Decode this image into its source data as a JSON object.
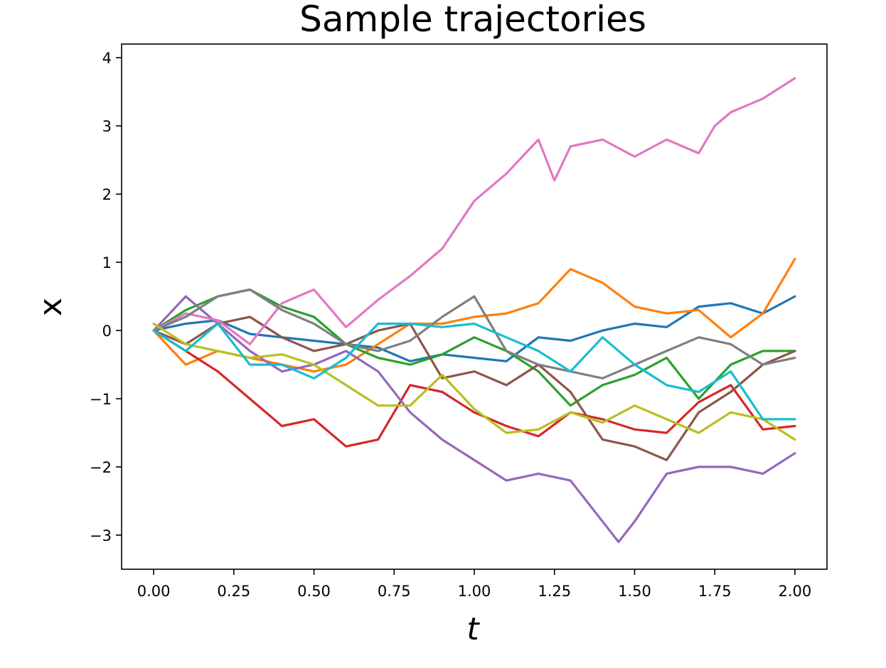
{
  "chart_data": {
    "type": "line",
    "title": "Sample trajectories",
    "xlabel": "t",
    "ylabel": "x",
    "xlim": [
      -0.1,
      2.1
    ],
    "ylim": [
      -3.5,
      4.2
    ],
    "xticks": [
      0.0,
      0.25,
      0.5,
      0.75,
      1.0,
      1.25,
      1.5,
      1.75,
      2.0
    ],
    "xtick_labels": [
      "0.00",
      "0.25",
      "0.50",
      "0.75",
      "1.00",
      "1.25",
      "1.50",
      "1.75",
      "2.00"
    ],
    "yticks": [
      -3,
      -2,
      -1,
      0,
      1,
      2,
      3,
      4
    ],
    "ytick_labels": [
      "−3",
      "−2",
      "−1",
      "0",
      "1",
      "2",
      "3",
      "4"
    ],
    "grid": false,
    "legend": "none",
    "series": [
      {
        "color": "#1f77b4",
        "x": [
          0,
          0.1,
          0.2,
          0.3,
          0.4,
          0.5,
          0.6,
          0.7,
          0.8,
          0.9,
          1.0,
          1.1,
          1.2,
          1.3,
          1.4,
          1.5,
          1.6,
          1.7,
          1.8,
          1.9,
          2.0
        ],
        "y": [
          0,
          0.1,
          0.15,
          -0.05,
          -0.1,
          -0.15,
          -0.2,
          -0.25,
          -0.45,
          -0.35,
          -0.4,
          -0.45,
          -0.1,
          -0.15,
          0.0,
          0.1,
          0.05,
          0.35,
          0.4,
          0.25,
          0.5
        ]
      },
      {
        "color": "#ff7f0e",
        "x": [
          0,
          0.1,
          0.2,
          0.3,
          0.4,
          0.5,
          0.6,
          0.7,
          0.8,
          0.9,
          1.0,
          1.1,
          1.2,
          1.3,
          1.4,
          1.5,
          1.6,
          1.7,
          1.8,
          1.9,
          2.0
        ],
        "y": [
          0,
          -0.5,
          -0.3,
          -0.4,
          -0.5,
          -0.6,
          -0.5,
          -0.2,
          0.1,
          0.1,
          0.2,
          0.25,
          0.4,
          0.9,
          0.7,
          0.35,
          0.25,
          0.3,
          -0.1,
          0.25,
          1.05
        ]
      },
      {
        "color": "#2ca02c",
        "x": [
          0,
          0.1,
          0.2,
          0.3,
          0.4,
          0.5,
          0.6,
          0.7,
          0.8,
          0.9,
          1.0,
          1.1,
          1.2,
          1.3,
          1.4,
          1.5,
          1.6,
          1.7,
          1.8,
          1.9,
          2.0
        ],
        "y": [
          0,
          0.3,
          0.5,
          0.6,
          0.35,
          0.2,
          -0.2,
          -0.4,
          -0.5,
          -0.35,
          -0.1,
          -0.3,
          -0.6,
          -1.1,
          -0.8,
          -0.65,
          -0.4,
          -1.0,
          -0.5,
          -0.3,
          -0.3
        ]
      },
      {
        "color": "#d62728",
        "x": [
          0,
          0.1,
          0.2,
          0.3,
          0.4,
          0.5,
          0.6,
          0.7,
          0.8,
          0.9,
          1.0,
          1.1,
          1.2,
          1.3,
          1.4,
          1.5,
          1.6,
          1.7,
          1.8,
          1.9,
          2.0
        ],
        "y": [
          0,
          -0.3,
          -0.6,
          -1.0,
          -1.4,
          -1.3,
          -1.7,
          -1.6,
          -0.8,
          -0.9,
          -1.2,
          -1.4,
          -1.55,
          -1.2,
          -1.3,
          -1.45,
          -1.5,
          -1.05,
          -0.8,
          -1.45,
          -1.4
        ]
      },
      {
        "color": "#9467bd",
        "x": [
          0,
          0.1,
          0.2,
          0.3,
          0.4,
          0.5,
          0.6,
          0.7,
          0.8,
          0.9,
          1.0,
          1.1,
          1.2,
          1.3,
          1.4,
          1.45,
          1.5,
          1.6,
          1.7,
          1.8,
          1.9,
          2.0
        ],
        "y": [
          0,
          0.5,
          0.1,
          -0.3,
          -0.6,
          -0.5,
          -0.3,
          -0.6,
          -1.2,
          -1.6,
          -1.9,
          -2.2,
          -2.1,
          -2.2,
          -2.8,
          -3.1,
          -2.8,
          -2.1,
          -2.0,
          -2.0,
          -2.1,
          -1.8
        ]
      },
      {
        "color": "#8c564b",
        "x": [
          0,
          0.1,
          0.2,
          0.3,
          0.4,
          0.5,
          0.6,
          0.7,
          0.8,
          0.9,
          1.0,
          1.1,
          1.2,
          1.3,
          1.4,
          1.5,
          1.6,
          1.7,
          1.8,
          1.9,
          2.0
        ],
        "y": [
          0,
          -0.2,
          0.1,
          0.2,
          -0.1,
          -0.3,
          -0.2,
          0.0,
          0.1,
          -0.7,
          -0.6,
          -0.8,
          -0.5,
          -0.9,
          -1.6,
          -1.7,
          -1.9,
          -1.2,
          -0.9,
          -0.5,
          -0.3
        ]
      },
      {
        "color": "#e377c2",
        "x": [
          0,
          0.1,
          0.2,
          0.3,
          0.4,
          0.5,
          0.6,
          0.7,
          0.8,
          0.9,
          1.0,
          1.1,
          1.2,
          1.25,
          1.3,
          1.4,
          1.5,
          1.6,
          1.7,
          1.75,
          1.8,
          1.9,
          2.0
        ],
        "y": [
          0,
          0.25,
          0.15,
          -0.2,
          0.4,
          0.6,
          0.05,
          0.45,
          0.8,
          1.2,
          1.9,
          2.3,
          2.8,
          2.2,
          2.7,
          2.8,
          2.55,
          2.8,
          2.6,
          3.0,
          3.2,
          3.4,
          3.7
        ]
      },
      {
        "color": "#7f7f7f",
        "x": [
          0,
          0.1,
          0.2,
          0.3,
          0.4,
          0.5,
          0.6,
          0.7,
          0.8,
          0.9,
          1.0,
          1.1,
          1.2,
          1.3,
          1.4,
          1.5,
          1.6,
          1.7,
          1.8,
          1.9,
          2.0
        ],
        "y": [
          0,
          0.2,
          0.5,
          0.6,
          0.3,
          0.1,
          -0.2,
          -0.3,
          -0.15,
          0.2,
          0.5,
          -0.3,
          -0.5,
          -0.6,
          -0.7,
          -0.5,
          -0.3,
          -0.1,
          -0.2,
          -0.5,
          -0.4
        ]
      },
      {
        "color": "#bcbd22",
        "x": [
          0,
          0.1,
          0.2,
          0.3,
          0.4,
          0.5,
          0.6,
          0.7,
          0.8,
          0.9,
          1.0,
          1.1,
          1.2,
          1.3,
          1.4,
          1.5,
          1.6,
          1.7,
          1.8,
          1.9,
          2.0
        ],
        "y": [
          0.1,
          -0.2,
          -0.3,
          -0.4,
          -0.35,
          -0.5,
          -0.8,
          -1.1,
          -1.1,
          -0.65,
          -1.15,
          -1.5,
          -1.45,
          -1.2,
          -1.35,
          -1.1,
          -1.3,
          -1.5,
          -1.2,
          -1.3,
          -1.6
        ]
      },
      {
        "color": "#17becf",
        "x": [
          0,
          0.1,
          0.2,
          0.3,
          0.4,
          0.5,
          0.6,
          0.7,
          0.8,
          0.9,
          1.0,
          1.1,
          1.2,
          1.3,
          1.4,
          1.5,
          1.6,
          1.7,
          1.8,
          1.9,
          2.0
        ],
        "y": [
          0,
          -0.3,
          0.1,
          -0.5,
          -0.5,
          -0.7,
          -0.4,
          0.1,
          0.1,
          0.05,
          0.1,
          -0.1,
          -0.3,
          -0.6,
          -0.1,
          -0.5,
          -0.8,
          -0.9,
          -0.6,
          -1.3,
          -1.3
        ]
      }
    ]
  }
}
